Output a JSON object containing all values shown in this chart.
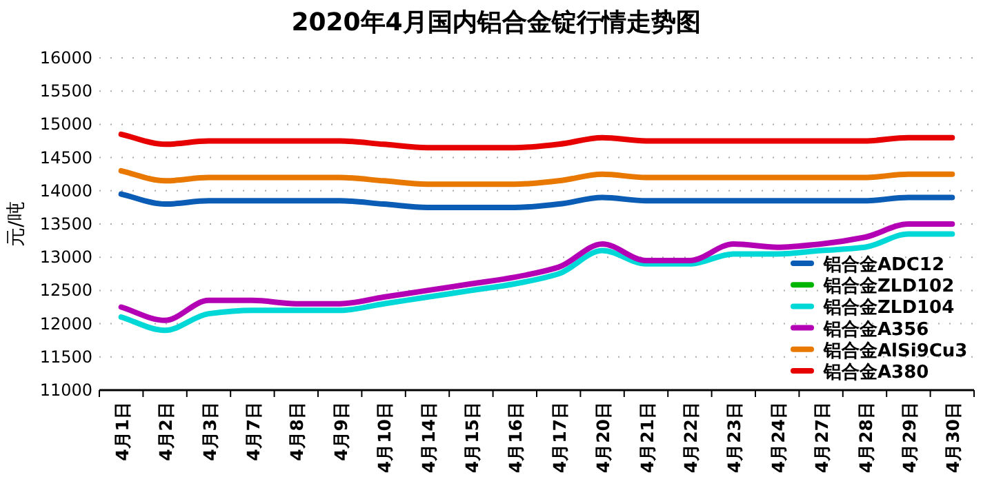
{
  "chart_data": {
    "type": "line",
    "title": "2020年4月国内铝合金锭行情走势图",
    "ylabel": "元/吨",
    "categories": [
      "4月1日",
      "4月2日",
      "4月3日",
      "4月7日",
      "4月8日",
      "4月9日",
      "4月10日",
      "4月14日",
      "4月15日",
      "4月16日",
      "4月17日",
      "4月20日",
      "4月21日",
      "4月22日",
      "4月23日",
      "4月24日",
      "4月27日",
      "4月28日",
      "4月29日",
      "4月30日"
    ],
    "series": [
      {
        "name": "铝合金ADC12",
        "color": "#0a5cb4",
        "values": [
          13950,
          13800,
          13850,
          13850,
          13850,
          13850,
          13800,
          13750,
          13750,
          13750,
          13800,
          13900,
          13850,
          13850,
          13850,
          13850,
          13850,
          13850,
          13900,
          13900
        ]
      },
      {
        "name": "铝合金ZLD102",
        "color": "#00b400",
        "values": [
          null,
          null,
          null,
          null,
          null,
          null,
          null,
          null,
          null,
          null,
          null,
          null,
          null,
          null,
          null,
          null,
          null,
          null,
          null,
          null
        ]
      },
      {
        "name": "铝合金ZLD104",
        "color": "#00d8d8",
        "values": [
          12100,
          11900,
          12150,
          12200,
          12200,
          12200,
          12300,
          12400,
          12500,
          12600,
          12750,
          13100,
          12900,
          12900,
          13050,
          13050,
          13100,
          13150,
          13350,
          13350
        ]
      },
      {
        "name": "铝合金A356",
        "color": "#b400b4",
        "values": [
          12250,
          12050,
          12350,
          12350,
          12300,
          12300,
          12400,
          12500,
          12600,
          12700,
          12850,
          13200,
          12950,
          12950,
          13200,
          13150,
          13200,
          13300,
          13500,
          13500
        ]
      },
      {
        "name": "铝合金AlSi9Cu3",
        "color": "#e87800",
        "values": [
          14300,
          14150,
          14200,
          14200,
          14200,
          14200,
          14150,
          14100,
          14100,
          14100,
          14150,
          14250,
          14200,
          14200,
          14200,
          14200,
          14200,
          14200,
          14250,
          14250
        ]
      },
      {
        "name": "铝合金A380",
        "color": "#e60000",
        "values": [
          14850,
          14700,
          14750,
          14750,
          14750,
          14750,
          14700,
          14650,
          14650,
          14650,
          14700,
          14800,
          14750,
          14750,
          14750,
          14750,
          14750,
          14750,
          14800,
          14800
        ]
      }
    ],
    "ylim": [
      11000,
      16000
    ],
    "yticks": [
      11000,
      11500,
      12000,
      12500,
      13000,
      13500,
      14000,
      14500,
      15000,
      15500,
      16000
    ],
    "grid": "y",
    "legend": "bottom right",
    "marker": "none",
    "line_style": "solid"
  }
}
